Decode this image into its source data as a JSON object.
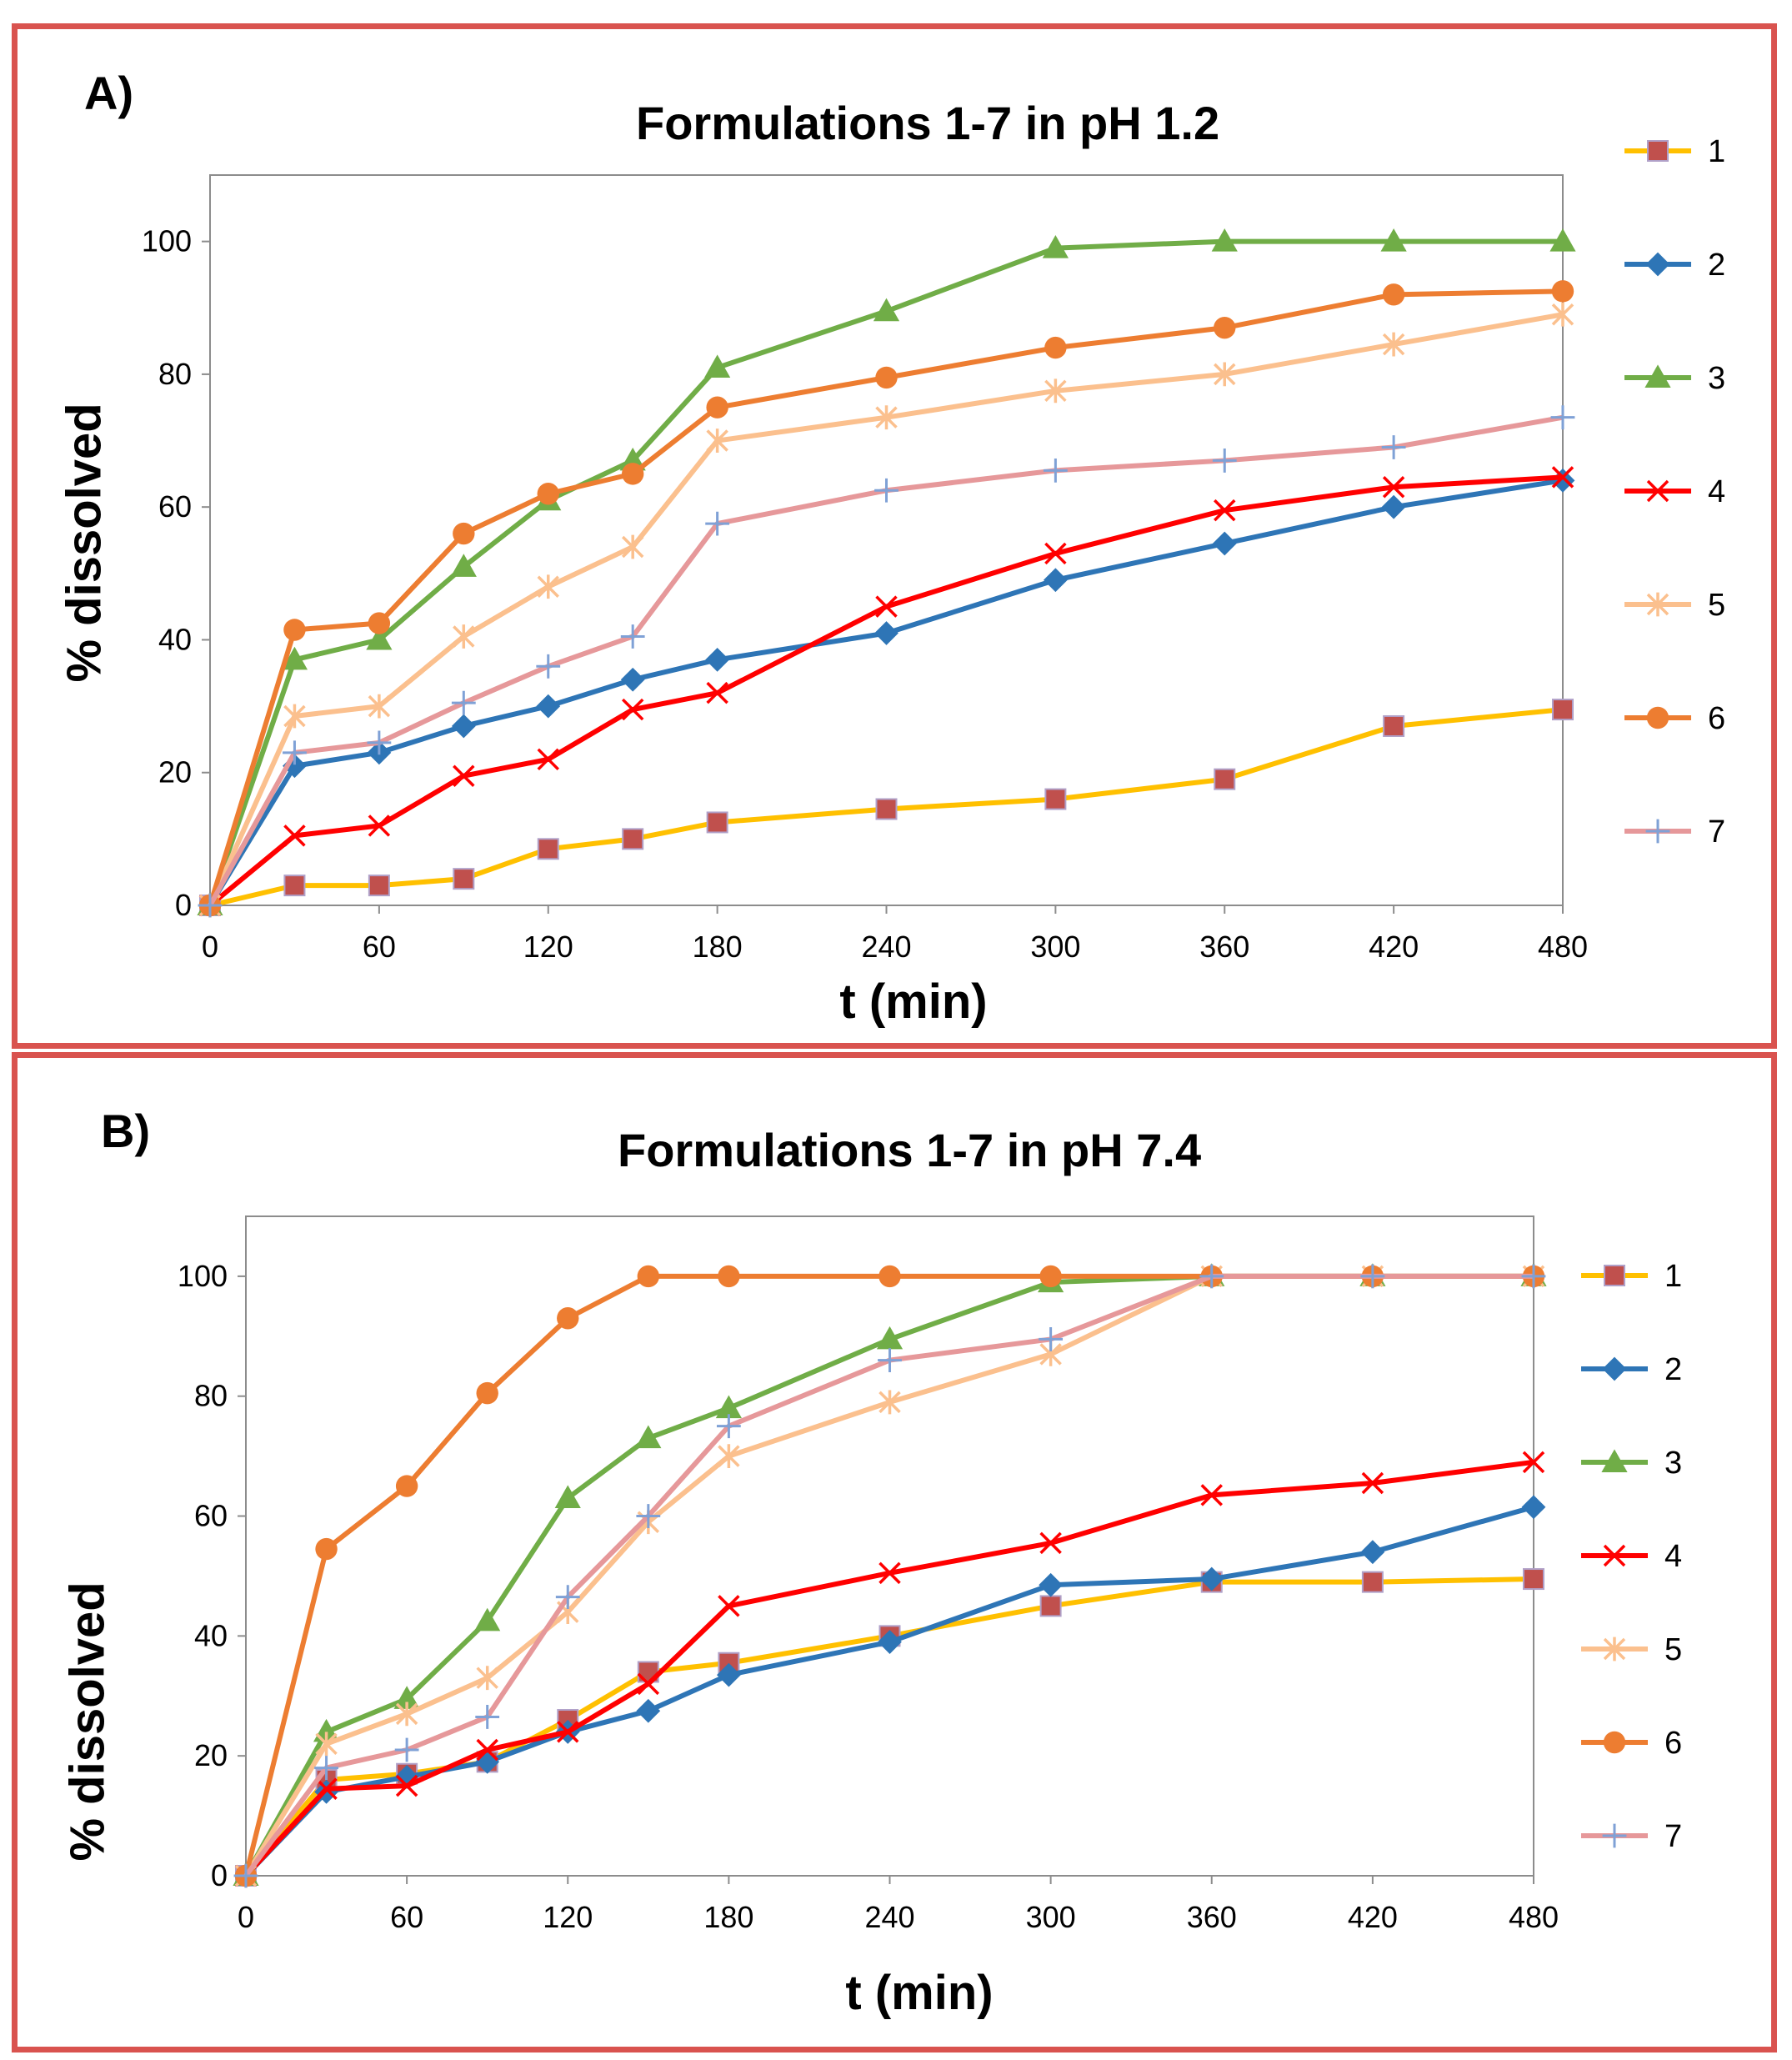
{
  "chart_data": [
    {
      "type": "line",
      "panel_label": "A)",
      "title": "Formulations 1-7 in pH 1.2",
      "xlabel": "t (min)",
      "ylabel": "% dissolved",
      "xlim": [
        0,
        480
      ],
      "ylim": [
        0,
        110
      ],
      "xticks": [
        0,
        60,
        120,
        180,
        240,
        300,
        360,
        420,
        480
      ],
      "yticks": [
        0,
        20,
        40,
        60,
        80,
        100
      ],
      "grid": false,
      "legend": "right",
      "x": [
        0,
        30,
        60,
        90,
        120,
        150,
        180,
        240,
        300,
        360,
        420,
        480
      ],
      "series": [
        {
          "name": "1",
          "color": "#ffc000",
          "marker": "square",
          "marker_color": "#c0504d",
          "values": [
            0,
            3,
            3,
            4,
            8.5,
            10,
            12.5,
            14.5,
            16,
            19,
            27,
            29.5
          ]
        },
        {
          "name": "2",
          "color": "#2e75b6",
          "marker": "diamond",
          "marker_color": "#2e75b6",
          "values": [
            0,
            21,
            23,
            27,
            30,
            34,
            37,
            41,
            49,
            54.5,
            60,
            64
          ]
        },
        {
          "name": "3",
          "color": "#70ad47",
          "marker": "triangle",
          "marker_color": "#70ad47",
          "values": [
            0,
            37,
            40,
            51,
            61,
            67,
            81,
            89.5,
            99,
            100,
            100,
            100
          ]
        },
        {
          "name": "4",
          "color": "#ff0000",
          "marker": "x",
          "marker_color": "#ff0000",
          "values": [
            0,
            10.5,
            12,
            19.5,
            22,
            29.5,
            32,
            45,
            53,
            59.5,
            63,
            64.5
          ]
        },
        {
          "name": "5",
          "color": "#fbc08e",
          "marker": "star",
          "marker_color": "#fbc08e",
          "values": [
            0,
            28.5,
            30,
            40.5,
            48,
            54,
            70,
            73.5,
            77.5,
            80,
            84.5,
            89
          ]
        },
        {
          "name": "6",
          "color": "#ed7d31",
          "marker": "circle",
          "marker_color": "#ed7d31",
          "values": [
            0,
            41.5,
            42.5,
            56,
            62,
            65,
            75,
            79.5,
            84,
            87,
            92,
            92.5
          ]
        },
        {
          "name": "7",
          "color": "#e6989a",
          "marker": "plus",
          "marker_color": "#7fa1d6",
          "values": [
            0,
            23,
            24.5,
            30.5,
            36,
            40.5,
            57.5,
            62.5,
            65.5,
            67,
            69,
            73.5
          ]
        }
      ]
    },
    {
      "type": "line",
      "panel_label": "B)",
      "title": "Formulations 1-7 in pH 7.4",
      "xlabel": "t (min)",
      "ylabel": "% dissolved",
      "xlim": [
        0,
        480
      ],
      "ylim": [
        0,
        110
      ],
      "xticks": [
        0,
        60,
        120,
        180,
        240,
        300,
        360,
        420,
        480
      ],
      "yticks": [
        0,
        20,
        40,
        60,
        80,
        100
      ],
      "grid": false,
      "legend": "right",
      "x": [
        0,
        30,
        60,
        90,
        120,
        150,
        180,
        240,
        300,
        360,
        420,
        480
      ],
      "series": [
        {
          "name": "1",
          "color": "#ffc000",
          "marker": "square",
          "marker_color": "#c0504d",
          "values": [
            0,
            16,
            17,
            19,
            26,
            34,
            35.5,
            40,
            45,
            49,
            49,
            49.5
          ]
        },
        {
          "name": "2",
          "color": "#2e75b6",
          "marker": "diamond",
          "marker_color": "#2e75b6",
          "values": [
            0,
            14,
            16.5,
            19,
            24,
            27.5,
            33.5,
            39,
            48.5,
            49.5,
            54,
            61.5
          ]
        },
        {
          "name": "3",
          "color": "#70ad47",
          "marker": "triangle",
          "marker_color": "#70ad47",
          "values": [
            0,
            24,
            29.5,
            42.5,
            63,
            73,
            78,
            89.5,
            99,
            100,
            100,
            100
          ]
        },
        {
          "name": "4",
          "color": "#ff0000",
          "marker": "x",
          "marker_color": "#ff0000",
          "values": [
            0,
            14.5,
            15,
            21,
            24,
            32,
            45,
            50.5,
            55.5,
            63.5,
            65.5,
            69
          ]
        },
        {
          "name": "5",
          "color": "#fbc08e",
          "marker": "star",
          "marker_color": "#fbc08e",
          "values": [
            0,
            22,
            27,
            33,
            44,
            59,
            70,
            79,
            87,
            100,
            100,
            100
          ]
        },
        {
          "name": "6",
          "color": "#ed7d31",
          "marker": "circle",
          "marker_color": "#ed7d31",
          "values": [
            0,
            54.5,
            65,
            80.5,
            93,
            100,
            100,
            100,
            100,
            100,
            100,
            100
          ]
        },
        {
          "name": "7",
          "color": "#e6989a",
          "marker": "plus",
          "marker_color": "#7fa1d6",
          "values": [
            0,
            18,
            21,
            26.5,
            46.5,
            60,
            75,
            86,
            89.5,
            100,
            100,
            100
          ]
        }
      ]
    }
  ]
}
